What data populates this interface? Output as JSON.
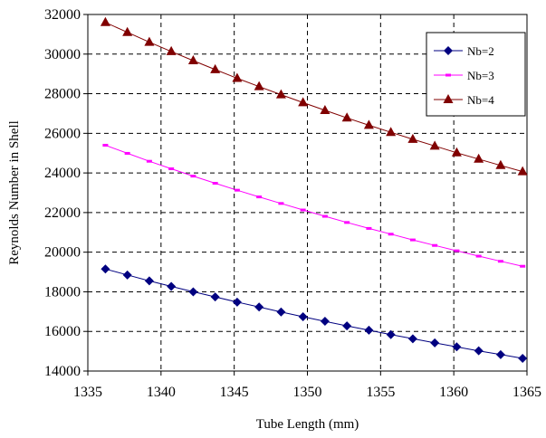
{
  "chart_data": {
    "type": "line",
    "title": "",
    "xlabel": "Tube Length (mm)",
    "ylabel": "Reynolds Number in Shell",
    "xlim": [
      1335,
      1365
    ],
    "ylim": [
      14000,
      32000
    ],
    "xticks": [
      "1335",
      "1340",
      "1345",
      "1350",
      "1355",
      "1360",
      "1365"
    ],
    "yticks": [
      "14000",
      "16000",
      "18000",
      "20000",
      "22000",
      "24000",
      "26000",
      "28000",
      "30000",
      "32000"
    ],
    "grid": true,
    "legend_position": "top-right",
    "x": [
      1336.2,
      1337.7,
      1339.2,
      1340.7,
      1342.2,
      1343.7,
      1345.2,
      1346.7,
      1348.2,
      1349.7,
      1351.2,
      1352.7,
      1354.2,
      1355.7,
      1357.2,
      1358.7,
      1360.2,
      1361.7,
      1363.2,
      1364.7
    ],
    "series": [
      {
        "name": "Nb=2",
        "color": "#000080",
        "marker": "diamond",
        "values": [
          19150,
          18850,
          18550,
          18270,
          18000,
          17740,
          17480,
          17230,
          16980,
          16740,
          16510,
          16280,
          16060,
          15840,
          15630,
          15420,
          15220,
          15020,
          14830,
          14640
        ]
      },
      {
        "name": "Nb=3",
        "color": "#ff00ff",
        "marker": "dash",
        "values": [
          25400,
          24990,
          24590,
          24210,
          23840,
          23480,
          23130,
          22790,
          22460,
          22130,
          21810,
          21500,
          21200,
          20910,
          20620,
          20340,
          20070,
          19800,
          19540,
          19290
        ]
      },
      {
        "name": "Nb=4",
        "color": "#800000",
        "marker": "triangle",
        "values": [
          31600,
          31100,
          30600,
          30130,
          29670,
          29220,
          28780,
          28360,
          27950,
          27550,
          27160,
          26780,
          26410,
          26050,
          25700,
          25360,
          25020,
          24700,
          24380,
          24070
        ]
      }
    ]
  }
}
